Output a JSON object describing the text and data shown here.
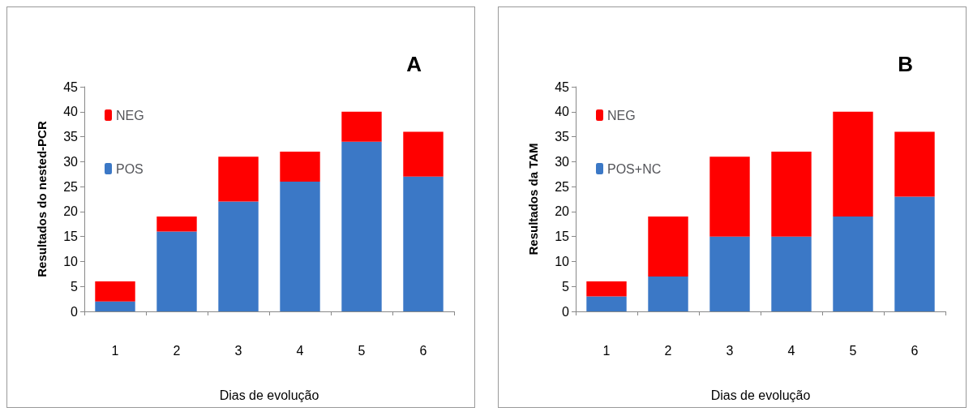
{
  "chart_data": [
    {
      "type": "bar",
      "title": "A",
      "xlabel": "Dias de evolução",
      "ylabel": "Resultados do nested-PCR",
      "categories": [
        "1",
        "2",
        "3",
        "4",
        "5",
        "6"
      ],
      "stacked": true,
      "series": [
        {
          "name": "POS",
          "color": "#3b78c6",
          "values": [
            2,
            16,
            22,
            26,
            34,
            27
          ]
        },
        {
          "name": "NEG",
          "color": "#ff0000",
          "values": [
            4,
            3,
            9,
            6,
            6,
            9
          ]
        }
      ],
      "ylim": [
        0,
        45
      ],
      "yticks": [
        0,
        5,
        10,
        15,
        20,
        25,
        30,
        35,
        40,
        45
      ],
      "grid": false,
      "legend": "top left"
    },
    {
      "type": "bar",
      "title": "B",
      "xlabel": "Dias de evolução",
      "ylabel": "Resultados da TAM",
      "categories": [
        "1",
        "2",
        "3",
        "4",
        "5",
        "6"
      ],
      "stacked": true,
      "series": [
        {
          "name": "POS+NC",
          "color": "#3b78c6",
          "values": [
            3,
            7,
            15,
            15,
            19,
            23
          ]
        },
        {
          "name": "NEG",
          "color": "#ff0000",
          "values": [
            3,
            12,
            16,
            17,
            21,
            13
          ]
        }
      ],
      "ylim": [
        0,
        45
      ],
      "yticks": [
        0,
        5,
        10,
        15,
        20,
        25,
        30,
        35,
        40,
        45
      ],
      "grid": false,
      "legend": "top left"
    }
  ]
}
